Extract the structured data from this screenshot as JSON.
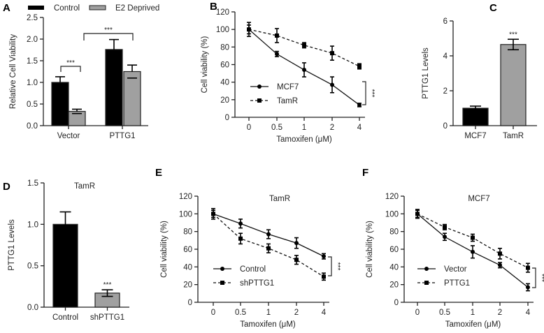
{
  "colors": {
    "control": "#000000",
    "treated": "#a0a0a0",
    "axis": "#222222"
  },
  "chart_data": [
    {
      "panel": "A",
      "type": "bar",
      "legend": [
        "Control",
        "E2 Deprived"
      ],
      "legend_placement": "top",
      "categories": [
        "Vector",
        "PTTG1"
      ],
      "series": [
        {
          "name": "Control",
          "values": [
            1.0,
            1.76
          ],
          "errors": [
            0.13,
            0.23
          ]
        },
        {
          "name": "E2 Deprived",
          "values": [
            0.33,
            1.25
          ],
          "errors": [
            0.05,
            0.15
          ]
        }
      ],
      "ylabel": "Relative Cell Viability",
      "ylim": [
        0,
        2.5
      ],
      "yticks": [
        "0.0",
        "0.5",
        "1.0",
        "1.5",
        "2.0",
        "2.5"
      ],
      "annotations": [
        "***",
        "***"
      ]
    },
    {
      "panel": "B",
      "type": "line",
      "x": [
        "0",
        "0.5",
        "1",
        "2",
        "4"
      ],
      "series": [
        {
          "name": "MCF7",
          "style": "solid",
          "values": [
            100,
            72,
            54,
            37,
            14
          ],
          "errors": [
            5,
            3,
            8,
            9,
            2
          ]
        },
        {
          "name": "TamR",
          "style": "dashed",
          "values": [
            100,
            93,
            82,
            73,
            58
          ],
          "errors": [
            8,
            8,
            3,
            8,
            3
          ]
        }
      ],
      "xlabel": "Tamoxifen (μM)",
      "ylabel": "Cell viability (%)",
      "ylim": [
        0,
        120
      ],
      "yticks": [
        "0",
        "20",
        "40",
        "60",
        "80",
        "100",
        "120"
      ],
      "annotations": [
        "***"
      ]
    },
    {
      "panel": "C",
      "type": "bar",
      "categories": [
        "MCF7",
        "TamR"
      ],
      "values": [
        1.0,
        4.65
      ],
      "errors": [
        0.12,
        0.3
      ],
      "ylabel": "PTTG1 Levels",
      "ylim": [
        0,
        6
      ],
      "yticks": [
        "0",
        "2",
        "4",
        "6"
      ],
      "annotations": [
        "***"
      ]
    },
    {
      "panel": "D",
      "type": "bar",
      "title": "TamR",
      "categories": [
        "Control",
        "shPTTG1"
      ],
      "values": [
        1.0,
        0.17
      ],
      "errors": [
        0.15,
        0.04
      ],
      "ylabel": "PTTG1 Levels",
      "ylim": [
        0,
        1.5
      ],
      "yticks": [
        "0.0",
        "0.5",
        "1.0",
        "1.5"
      ],
      "annotations": [
        "***"
      ]
    },
    {
      "panel": "E",
      "type": "line",
      "title": "TamR",
      "x": [
        "0",
        "0.5",
        "1",
        "2",
        "4"
      ],
      "series": [
        {
          "name": "Control",
          "style": "solid",
          "values": [
            100,
            89,
            77,
            67,
            52
          ],
          "errors": [
            6,
            5,
            5,
            6,
            3
          ]
        },
        {
          "name": "shPTTG1",
          "style": "dashed",
          "values": [
            100,
            72,
            61,
            48,
            29
          ],
          "errors": [
            4,
            6,
            5,
            5,
            4
          ]
        }
      ],
      "xlabel": "Tamoxifen (μM)",
      "ylabel": "Cell viability (%)",
      "ylim": [
        0,
        120
      ],
      "yticks": [
        "0",
        "20",
        "40",
        "60",
        "80",
        "100",
        "120"
      ],
      "annotations": [
        "***"
      ]
    },
    {
      "panel": "F",
      "type": "line",
      "title": "MCF7",
      "x": [
        "0",
        "0.5",
        "1",
        "2",
        "4"
      ],
      "series": [
        {
          "name": "Vector",
          "style": "solid",
          "values": [
            100,
            74,
            57,
            42,
            17
          ],
          "errors": [
            4,
            4,
            7,
            3,
            4
          ]
        },
        {
          "name": "PTTG1",
          "style": "dashed",
          "values": [
            100,
            85,
            73,
            55,
            39
          ],
          "errors": [
            5,
            3,
            4,
            6,
            5
          ]
        }
      ],
      "xlabel": "Tamoxifen (μM)",
      "ylabel": "Cell viability (%)",
      "ylim": [
        0,
        120
      ],
      "yticks": [
        "0",
        "20",
        "40",
        "60",
        "80",
        "100",
        "120"
      ],
      "annotations": [
        "***"
      ]
    }
  ]
}
